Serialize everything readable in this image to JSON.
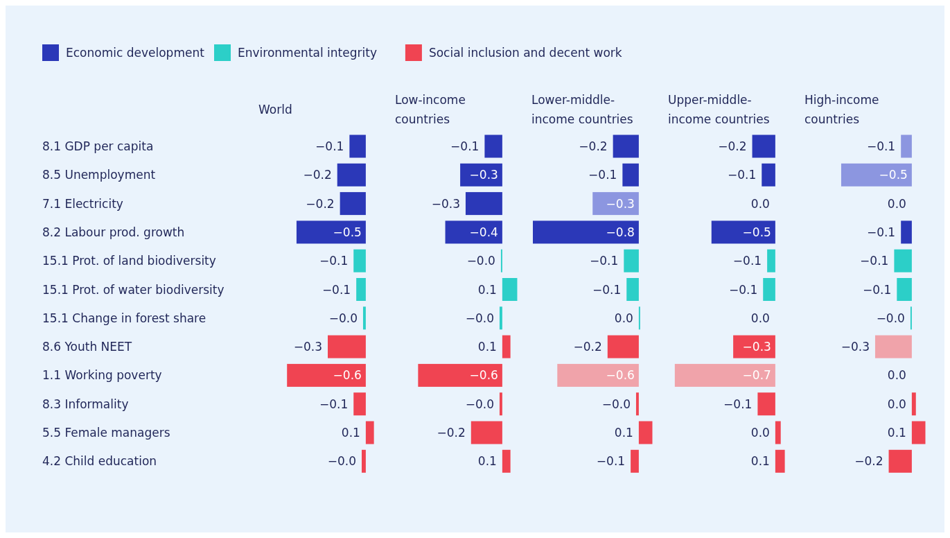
{
  "chart_data": [
    {
      "type": "bar",
      "orientation": "horizontal",
      "title": "World",
      "legend": "top left",
      "tick_labels": "y",
      "categories": [
        "8.1 GDP per capita",
        "8.5 Unemployment",
        "7.1 Electricity",
        "8.2 Labour prod. growth",
        "15.1 Prot. of land biodiversity",
        "15.1 Prot. of water biodiversity",
        "15.1 Change in forest share",
        "8.6 Youth NEET",
        "1.1 Working poverty",
        "8.3 Informality",
        "5.5 Female managers",
        "4.2 Child education"
      ],
      "series": [
        {
          "name": "Economic development",
          "color": "#2b38b8",
          "values": [
            -0.12,
            -0.21,
            -0.19,
            -0.51,
            null,
            null,
            null,
            null,
            null,
            null,
            null,
            null
          ],
          "value_labels": [
            "−0.1",
            "−0.2",
            "−0.2",
            "−0.5",
            null,
            null,
            null,
            null,
            null,
            null,
            null,
            null
          ]
        },
        {
          "name": "Environmental integrity",
          "color": "#2ccfc8",
          "values": [
            null,
            null,
            null,
            null,
            -0.09,
            -0.07,
            -0.02,
            null,
            null,
            null,
            null,
            null
          ],
          "value_labels": [
            null,
            null,
            null,
            null,
            "−0.1",
            "−0.1",
            "−0.0",
            null,
            null,
            null,
            null,
            null
          ]
        },
        {
          "name": "Social inclusion and decent work",
          "color": "#f04452",
          "values": [
            null,
            null,
            null,
            null,
            null,
            null,
            null,
            -0.28,
            -0.58,
            -0.09,
            0.06,
            -0.03
          ],
          "value_labels": [
            null,
            null,
            null,
            null,
            null,
            null,
            null,
            "−0.3",
            "−0.6",
            "−0.1",
            "0.1",
            "−0.0"
          ]
        }
      ]
    },
    {
      "type": "bar",
      "orientation": "horizontal",
      "title": "Low-income countries",
      "legend": false,
      "tick_labels": false,
      "series": [
        {
          "color": "#2b38b8",
          "values": [
            -0.13,
            -0.31,
            -0.27,
            -0.42,
            null,
            null,
            null,
            null,
            null,
            null,
            null,
            null
          ],
          "value_labels": [
            "−0.1",
            "−0.3",
            "−0.3",
            "−0.4",
            null,
            null,
            null,
            null,
            null,
            null,
            null,
            null
          ]
        },
        {
          "color": "#2ccfc8",
          "values": [
            null,
            null,
            null,
            null,
            -0.01,
            0.11,
            -0.02,
            null,
            null,
            null,
            null,
            null
          ],
          "value_labels": [
            null,
            null,
            null,
            null,
            "−0.0",
            "0.1",
            "−0.0",
            null,
            null,
            null,
            null,
            null
          ]
        },
        {
          "color": "#f04452",
          "values": [
            null,
            null,
            null,
            null,
            null,
            null,
            null,
            0.06,
            -0.62,
            -0.02,
            -0.23,
            0.06
          ],
          "value_labels": [
            null,
            null,
            null,
            null,
            null,
            null,
            null,
            "0.1",
            "−0.6",
            "−0.0",
            "−0.2",
            "0.1"
          ]
        }
      ]
    },
    {
      "type": "bar",
      "orientation": "horizontal",
      "title": "Lower-middle-income countries",
      "legend": false,
      "tick_labels": false,
      "series": [
        {
          "color": "#2b38b8",
          "colors": [
            null,
            null,
            "#8c96e0",
            null,
            null,
            null,
            null,
            null,
            null,
            null,
            null,
            null
          ],
          "values": [
            -0.19,
            -0.12,
            -0.34,
            -0.78,
            null,
            null,
            null,
            null,
            null,
            null,
            null,
            null
          ],
          "value_labels": [
            "−0.2",
            "−0.1",
            "−0.3",
            "−0.8",
            null,
            null,
            null,
            null,
            null,
            null,
            null,
            null
          ]
        },
        {
          "color": "#2ccfc8",
          "values": [
            null,
            null,
            null,
            null,
            -0.11,
            -0.09,
            0.01,
            null,
            null,
            null,
            null,
            null
          ],
          "value_labels": [
            null,
            null,
            null,
            null,
            "−0.1",
            "−0.1",
            "0.0",
            null,
            null,
            null,
            null,
            null
          ]
        },
        {
          "color": "#f04452",
          "colors": [
            null,
            null,
            null,
            null,
            null,
            null,
            null,
            null,
            "#f0a3aa",
            null,
            null,
            null
          ],
          "values": [
            null,
            null,
            null,
            null,
            null,
            null,
            null,
            -0.23,
            -0.6,
            -0.02,
            0.1,
            -0.06
          ],
          "value_labels": [
            null,
            null,
            null,
            null,
            null,
            null,
            null,
            "−0.2",
            "−0.6",
            "−0.0",
            "0.1",
            "−0.1"
          ]
        }
      ]
    },
    {
      "type": "bar",
      "orientation": "horizontal",
      "title": "Upper-middle-income countries",
      "legend": false,
      "tick_labels": false,
      "series": [
        {
          "color": "#2b38b8",
          "values": [
            -0.17,
            -0.1,
            0,
            -0.47,
            null,
            null,
            null,
            null,
            null,
            null,
            null,
            null
          ],
          "value_labels": [
            "−0.2",
            "−0.1",
            "0.0",
            "−0.5",
            null,
            null,
            null,
            null,
            null,
            null,
            null,
            null
          ]
        },
        {
          "color": "#2ccfc8",
          "values": [
            null,
            null,
            null,
            null,
            -0.06,
            -0.09,
            0,
            null,
            null,
            null,
            null,
            null
          ],
          "value_labels": [
            null,
            null,
            null,
            null,
            "−0.1",
            "−0.1",
            "0.0",
            null,
            null,
            null,
            null,
            null
          ]
        },
        {
          "color": "#f04452",
          "colors": [
            null,
            null,
            null,
            null,
            null,
            null,
            null,
            null,
            "#f0a3aa",
            null,
            null,
            null
          ],
          "values": [
            null,
            null,
            null,
            null,
            null,
            null,
            null,
            -0.31,
            -0.74,
            -0.13,
            0.04,
            0.07
          ],
          "value_labels": [
            null,
            null,
            null,
            null,
            null,
            null,
            null,
            "−0.3",
            "−0.7",
            "−0.1",
            "0.0",
            "0.1"
          ]
        }
      ]
    },
    {
      "type": "bar",
      "orientation": "horizontal",
      "title": "High-income countries",
      "legend": false,
      "tick_labels": false,
      "series": [
        {
          "color": "#2b38b8",
          "colors": [
            "#8c96e0",
            "#8c96e0",
            null,
            null,
            null,
            null,
            null,
            null,
            null,
            null,
            null,
            null
          ],
          "values": [
            -0.08,
            -0.52,
            0,
            -0.08,
            null,
            null,
            null,
            null,
            null,
            null,
            null,
            null
          ],
          "value_labels": [
            "−0.1",
            "−0.5",
            "0.0",
            "−0.1",
            null,
            null,
            null,
            null,
            null,
            null,
            null,
            null
          ]
        },
        {
          "color": "#2ccfc8",
          "values": [
            null,
            null,
            null,
            null,
            -0.13,
            -0.11,
            -0.01,
            null,
            null,
            null,
            null,
            null
          ],
          "value_labels": [
            null,
            null,
            null,
            null,
            "−0.1",
            "−0.1",
            "−0.0",
            null,
            null,
            null,
            null,
            null
          ]
        },
        {
          "color": "#f04452",
          "colors": [
            null,
            null,
            null,
            null,
            null,
            null,
            null,
            "#f0a3aa",
            null,
            null,
            null,
            null
          ],
          "values": [
            null,
            null,
            null,
            null,
            null,
            null,
            null,
            -0.27,
            0,
            0.03,
            0.1,
            -0.17
          ],
          "value_labels": [
            null,
            null,
            null,
            null,
            null,
            null,
            null,
            "−0.3",
            "0.0",
            "0.0",
            "0.1",
            "−0.2"
          ]
        }
      ]
    }
  ]
}
